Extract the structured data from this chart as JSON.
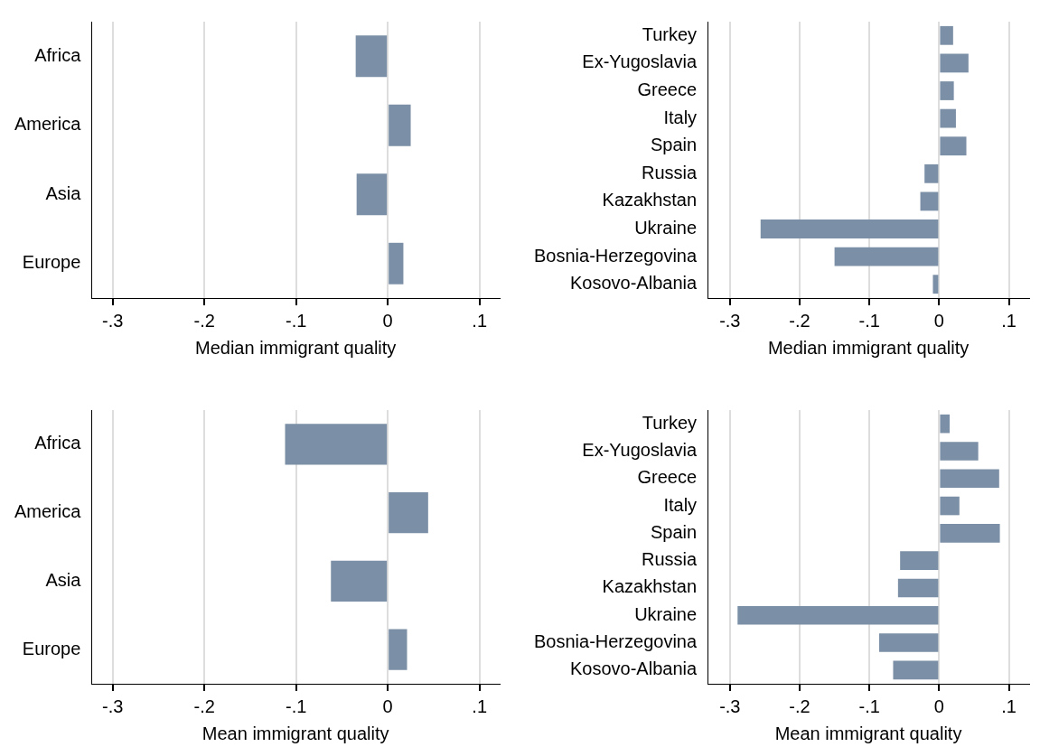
{
  "chart_data": [
    {
      "type": "bar",
      "orientation": "horizontal",
      "categories": [
        "Africa",
        "America",
        "Asia",
        "Europe"
      ],
      "values": [
        -0.035,
        0.025,
        -0.034,
        0.017
      ],
      "color": "#7b8fa6",
      "xlim": [
        -0.323,
        0.122
      ],
      "xticks": [
        {
          "value": -0.3,
          "label": "-.3"
        },
        {
          "value": -0.2,
          "label": "-.2"
        },
        {
          "value": -0.1,
          "label": "-.1"
        },
        {
          "value": 0,
          "label": "0"
        },
        {
          "value": 0.1,
          "label": ".1"
        }
      ],
      "xlabel": "Median immigrant quality",
      "grid": "x"
    },
    {
      "type": "bar",
      "orientation": "horizontal",
      "categories": [
        "Turkey",
        "Ex-Yugoslavia",
        "Greece",
        "Italy",
        "Spain",
        "Russia",
        "Kazakhstan",
        "Ukraine",
        "Bosnia-Herzegovina",
        "Kosovo-Albania"
      ],
      "values": [
        0.02,
        0.042,
        0.021,
        0.024,
        0.039,
        -0.021,
        -0.027,
        -0.256,
        -0.15,
        -0.009
      ],
      "color": "#7b8fa6",
      "xlim": [
        -0.332,
        0.129
      ],
      "xticks": [
        {
          "value": -0.3,
          "label": "-.3"
        },
        {
          "value": -0.2,
          "label": "-.2"
        },
        {
          "value": -0.1,
          "label": "-.1"
        },
        {
          "value": 0,
          "label": "0"
        },
        {
          "value": 0.1,
          "label": ".1"
        }
      ],
      "xlabel": "Median immigrant quality",
      "grid": "x"
    },
    {
      "type": "bar",
      "orientation": "horizontal",
      "categories": [
        "Africa",
        "America",
        "Asia",
        "Europe"
      ],
      "values": [
        -0.112,
        0.044,
        -0.062,
        0.021
      ],
      "color": "#7b8fa6",
      "xlim": [
        -0.323,
        0.122
      ],
      "xticks": [
        {
          "value": -0.3,
          "label": "-.3"
        },
        {
          "value": -0.2,
          "label": "-.2"
        },
        {
          "value": -0.1,
          "label": "-.1"
        },
        {
          "value": 0,
          "label": "0"
        },
        {
          "value": 0.1,
          "label": ".1"
        }
      ],
      "xlabel": "Mean immigrant quality",
      "grid": "x"
    },
    {
      "type": "bar",
      "orientation": "horizontal",
      "categories": [
        "Turkey",
        "Ex-Yugoslavia",
        "Greece",
        "Italy",
        "Spain",
        "Russia",
        "Kazakhstan",
        "Ukraine",
        "Bosnia-Herzegovina",
        "Kosovo-Albania"
      ],
      "values": [
        0.015,
        0.056,
        0.086,
        0.029,
        0.087,
        -0.056,
        -0.059,
        -0.289,
        -0.086,
        -0.066
      ],
      "color": "#7b8fa6",
      "xlim": [
        -0.332,
        0.129
      ],
      "xticks": [
        {
          "value": -0.3,
          "label": "-.3"
        },
        {
          "value": -0.2,
          "label": "-.2"
        },
        {
          "value": -0.1,
          "label": "-.1"
        },
        {
          "value": 0,
          "label": "0"
        },
        {
          "value": 0.1,
          "label": ".1"
        }
      ],
      "xlabel": "Mean immigrant quality",
      "grid": "x"
    }
  ]
}
